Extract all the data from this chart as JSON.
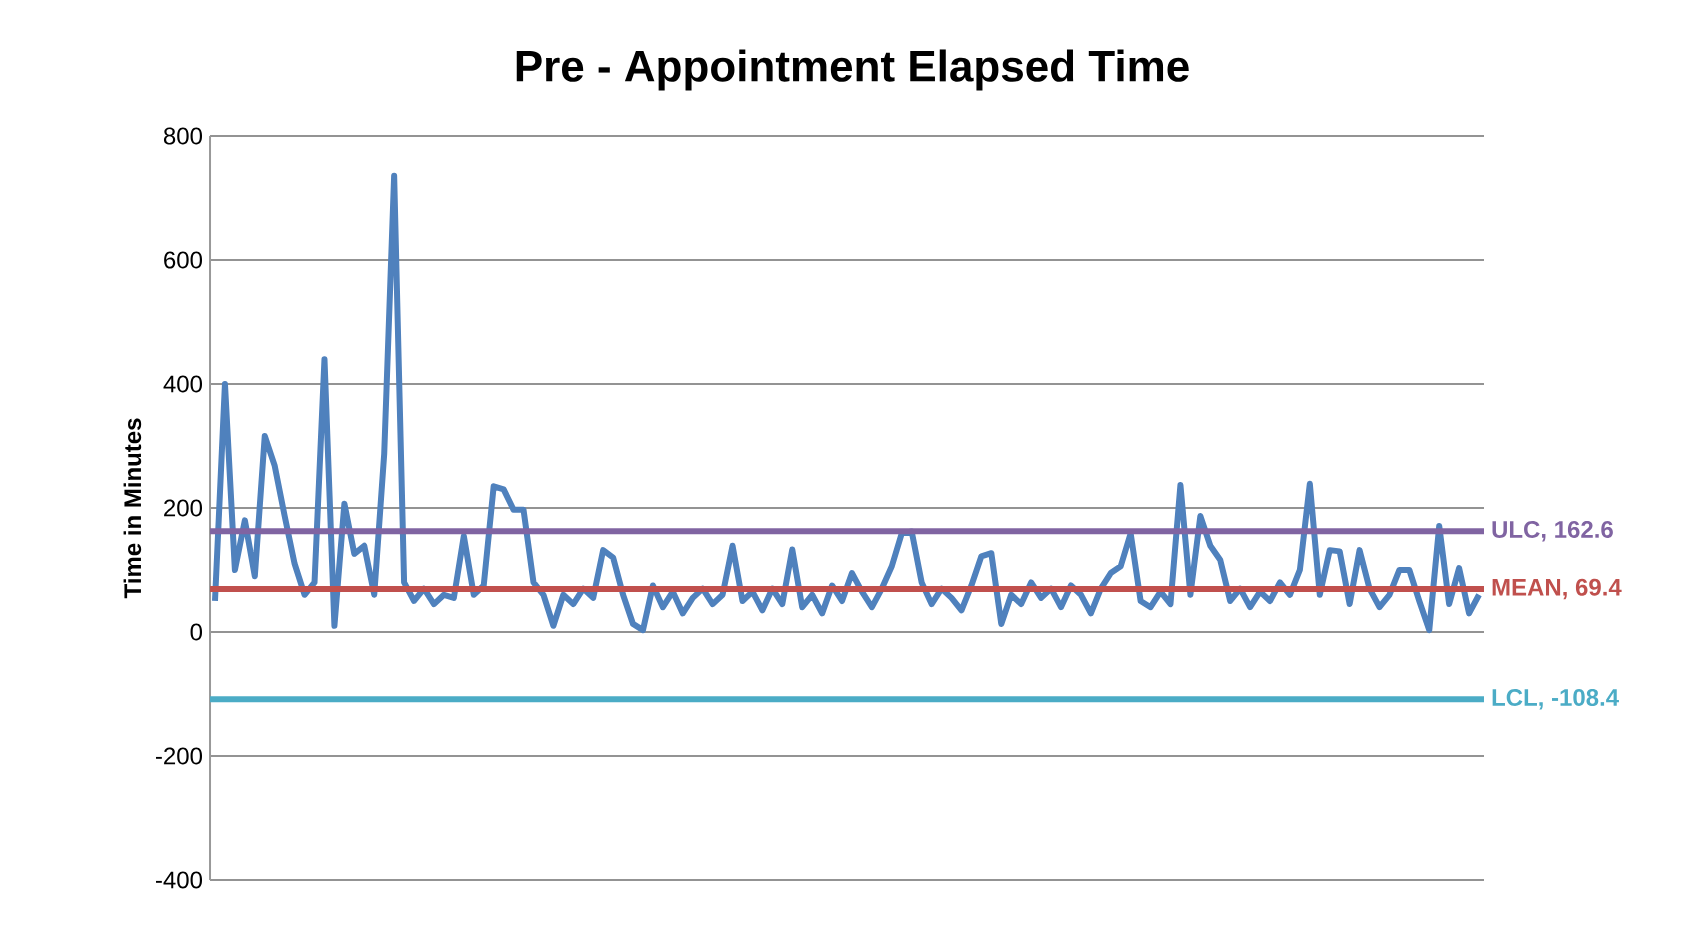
{
  "chart_data": {
    "type": "line",
    "title": "Pre  - Appointment Elapsed Time",
    "ylabel": "Time in Minutes",
    "categories": [
      null,
      null,
      null,
      null,
      null,
      null,
      null,
      null,
      null,
      null,
      null,
      null,
      null,
      null,
      null,
      null,
      null,
      null,
      null,
      null,
      null,
      null,
      null,
      null,
      null,
      null,
      null,
      null,
      null,
      null,
      null,
      null,
      null,
      null,
      null,
      null,
      null,
      null,
      null,
      null,
      null,
      null,
      null,
      null,
      null,
      null,
      null,
      null,
      null,
      null,
      null,
      null,
      null,
      null,
      null,
      null,
      null,
      null,
      null,
      null,
      null,
      null,
      null,
      null,
      null,
      null,
      null,
      null,
      null,
      null,
      null,
      null,
      null,
      null,
      null,
      null,
      null,
      null,
      null,
      null,
      null,
      null,
      null,
      null,
      null,
      null,
      null,
      null,
      null,
      null,
      null,
      null,
      null,
      null,
      null,
      null,
      null,
      null,
      null,
      null,
      null,
      null,
      null,
      null,
      null,
      null,
      null,
      null,
      null,
      null,
      null,
      null,
      null,
      null,
      null,
      null,
      null,
      null,
      null,
      null,
      null,
      null,
      null,
      null,
      null,
      null,
      null,
      null
    ],
    "series": [
      {
        "color": "#4f81bd",
        "values": [
          50,
          400,
          100,
          180,
          90,
          316,
          268,
          187,
          110,
          60,
          80,
          440,
          10,
          207,
          126,
          139,
          60,
          287,
          736,
          80,
          50,
          70,
          45,
          60,
          55,
          155,
          60,
          75,
          235,
          230,
          197,
          197,
          80,
          60,
          10,
          60,
          45,
          70,
          55,
          132,
          120,
          60,
          13,
          3,
          75,
          40,
          65,
          30,
          55,
          70,
          45,
          60,
          139,
          50,
          65,
          35,
          70,
          45,
          133,
          40,
          60,
          30,
          75,
          50,
          95,
          65,
          40,
          70,
          106,
          159,
          162,
          80,
          45,
          70,
          55,
          35,
          75,
          122,
          127,
          13,
          60,
          45,
          80,
          55,
          70,
          40,
          75,
          60,
          30,
          70,
          95,
          106,
          159,
          50,
          40,
          65,
          45,
          237,
          60,
          187,
          139,
          116,
          50,
          70,
          40,
          65,
          50,
          80,
          60,
          100,
          239,
          60,
          132,
          130,
          45,
          132,
          70,
          40,
          60,
          100,
          100,
          50,
          3,
          171,
          45,
          103,
          30,
          60
        ]
      }
    ],
    "ylim": [
      -400,
      800
    ],
    "yticks": [
      -400,
      -200,
      0,
      200,
      400,
      600,
      800
    ],
    "grid": "y",
    "marker": "none",
    "line_style": "solid",
    "ref_lines": [
      {
        "axis": "y",
        "value": 162.6,
        "label": "ULC, 162.6",
        "color": "#8064a2"
      },
      {
        "axis": "y",
        "value": 69.4,
        "label": "MEAN, 69.4",
        "color": "#c0504d"
      },
      {
        "axis": "y",
        "value": -108.4,
        "label": "LCL, -108.4",
        "color": "#4bacc6"
      }
    ]
  }
}
